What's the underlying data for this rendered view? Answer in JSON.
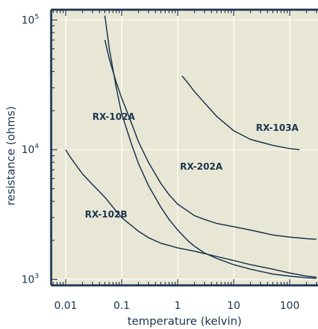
{
  "chart_data": {
    "type": "line",
    "xlabel": "temperature (kelvin)",
    "ylabel": "resistance (ohms)",
    "x_scale": "log",
    "y_scale": "log",
    "xlim": [
      0.0055,
      320
    ],
    "ylim": [
      900,
      120000
    ],
    "grid": true,
    "x_ticks": [
      {
        "value": 0.01,
        "label": "0.01"
      },
      {
        "value": 0.1,
        "label": "0.1"
      },
      {
        "value": 1,
        "label": "1"
      },
      {
        "value": 10,
        "label": "10"
      },
      {
        "value": 100,
        "label": "100"
      }
    ],
    "y_ticks": [
      {
        "value": 1000,
        "base": "10",
        "exp": "3"
      },
      {
        "value": 10000,
        "base": "10",
        "exp": "4"
      },
      {
        "value": 100000,
        "base": "10",
        "exp": "5"
      }
    ],
    "series": [
      {
        "name": "RX-102A",
        "label_at": {
          "x": 0.03,
          "y": 17000
        },
        "points": [
          [
            0.05,
            108000
          ],
          [
            0.06,
            60000
          ],
          [
            0.08,
            30000
          ],
          [
            0.1,
            19000
          ],
          [
            0.15,
            11000
          ],
          [
            0.2,
            7800
          ],
          [
            0.3,
            5300
          ],
          [
            0.5,
            3600
          ],
          [
            0.7,
            2900
          ],
          [
            1,
            2400
          ],
          [
            1.5,
            2000
          ],
          [
            2,
            1800
          ],
          [
            3,
            1600
          ],
          [
            5,
            1450
          ],
          [
            10,
            1300
          ],
          [
            20,
            1200
          ],
          [
            50,
            1100
          ],
          [
            100,
            1060
          ],
          [
            200,
            1030
          ],
          [
            300,
            1020
          ]
        ]
      },
      {
        "name": "RX-202A",
        "label_at": {
          "x": 1.1,
          "y": 7000
        },
        "points": [
          [
            0.05,
            70000
          ],
          [
            0.06,
            50000
          ],
          [
            0.08,
            33000
          ],
          [
            0.1,
            25000
          ],
          [
            0.15,
            16000
          ],
          [
            0.2,
            11500
          ],
          [
            0.3,
            8000
          ],
          [
            0.5,
            5500
          ],
          [
            0.7,
            4500
          ],
          [
            1,
            3800
          ],
          [
            2,
            3100
          ],
          [
            3,
            2900
          ],
          [
            5,
            2700
          ],
          [
            10,
            2550
          ],
          [
            20,
            2400
          ],
          [
            50,
            2200
          ],
          [
            100,
            2120
          ],
          [
            200,
            2060
          ],
          [
            300,
            2040
          ]
        ]
      },
      {
        "name": "RX-103A",
        "label_at": {
          "x": 25,
          "y": 14000
        },
        "points": [
          [
            1.2,
            37000
          ],
          [
            1.5,
            33000
          ],
          [
            2,
            28000
          ],
          [
            3,
            23000
          ],
          [
            5,
            18000
          ],
          [
            10,
            14000
          ],
          [
            20,
            12000
          ],
          [
            50,
            10800
          ],
          [
            100,
            10200
          ],
          [
            150,
            10000
          ]
        ]
      },
      {
        "name": "RX-102B",
        "label_at": {
          "x": 0.022,
          "y": 3000
        },
        "points": [
          [
            0.01,
            10000
          ],
          [
            0.012,
            8800
          ],
          [
            0.015,
            7700
          ],
          [
            0.02,
            6500
          ],
          [
            0.03,
            5400
          ],
          [
            0.05,
            4300
          ],
          [
            0.07,
            3600
          ],
          [
            0.1,
            3000
          ],
          [
            0.15,
            2600
          ],
          [
            0.2,
            2350
          ],
          [
            0.3,
            2100
          ],
          [
            0.5,
            1900
          ],
          [
            1,
            1750
          ],
          [
            2,
            1650
          ],
          [
            5,
            1500
          ],
          [
            10,
            1400
          ],
          [
            20,
            1300
          ],
          [
            50,
            1200
          ],
          [
            100,
            1120
          ],
          [
            200,
            1060
          ],
          [
            300,
            1040
          ]
        ]
      }
    ]
  }
}
